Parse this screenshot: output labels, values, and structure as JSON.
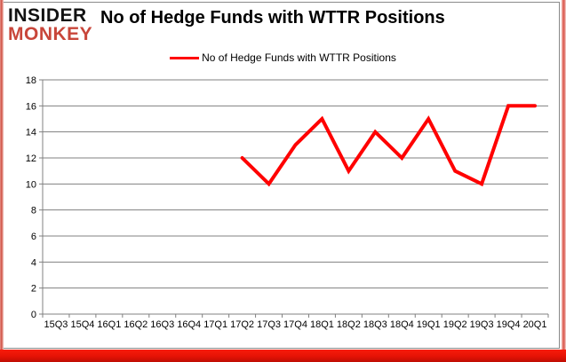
{
  "logo": {
    "line1": "INSIDER",
    "line2": "MONKEY",
    "line2_color": "#c8463a"
  },
  "title": "No of Hedge Funds with WTTR Positions",
  "legend": {
    "label": "No of Hedge Funds with WTTR Positions",
    "color": "#ff0000"
  },
  "chart_data": {
    "type": "line",
    "title": "No of Hedge Funds with WTTR Positions",
    "categories": [
      "15Q3",
      "15Q4",
      "16Q1",
      "16Q2",
      "16Q3",
      "16Q4",
      "17Q1",
      "17Q2",
      "17Q3",
      "17Q4",
      "18Q1",
      "18Q2",
      "18Q3",
      "18Q4",
      "19Q1",
      "19Q2",
      "19Q3",
      "19Q4",
      "20Q1"
    ],
    "series": [
      {
        "name": "No of Hedge Funds with WTTR Positions",
        "color": "#ff0000",
        "values": [
          null,
          null,
          null,
          null,
          null,
          null,
          null,
          12,
          10,
          13,
          15,
          11,
          14,
          12,
          15,
          11,
          10,
          16,
          16
        ]
      }
    ],
    "xlabel": "",
    "ylabel": "",
    "ylim": [
      0,
      18
    ],
    "ytick_step": 2,
    "grid": true,
    "legend_position": "top-center",
    "gridline_color": "#808080",
    "axis_color": "#808080",
    "axis_text_color": "#000000"
  },
  "colors": {
    "brand_red": "#c8463a",
    "series_red": "#ff0000",
    "grid_gray": "#808080",
    "border_red": "#e51205"
  }
}
